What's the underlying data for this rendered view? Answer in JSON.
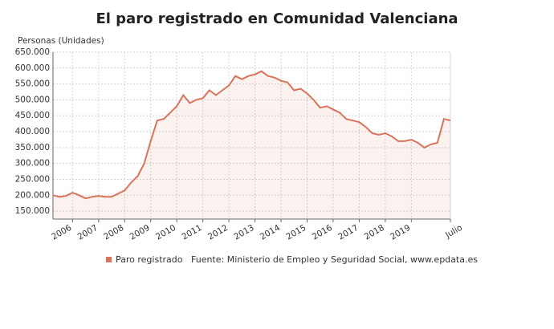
{
  "chart_data": {
    "type": "area",
    "title": "El paro registrado en Comunidad Valenciana",
    "y_label": "Personas (Unidades)",
    "source": "Fuente: Ministerio de Empleo y Seguridad Social, www.epdata.es",
    "categories": [
      null,
      null,
      null,
      "2006",
      null,
      null,
      null,
      "2007",
      null,
      null,
      null,
      "2008",
      null,
      null,
      null,
      "2009",
      null,
      null,
      null,
      "2010",
      null,
      null,
      null,
      "2011",
      null,
      null,
      null,
      "2012",
      null,
      null,
      null,
      "2013",
      null,
      null,
      null,
      "2014",
      null,
      null,
      null,
      "2015",
      null,
      null,
      null,
      "2016",
      null,
      null,
      null,
      "2017",
      null,
      null,
      null,
      "2018",
      null,
      null,
      null,
      "2019",
      null,
      null,
      null,
      null,
      null,
      "Julio"
    ],
    "series": [
      {
        "name": "Paro registrado",
        "color": "#d9745b",
        "values": [
          200000,
          195000,
          198000,
          208000,
          200000,
          190000,
          195000,
          198000,
          195000,
          195000,
          205000,
          215000,
          240000,
          260000,
          300000,
          370000,
          435000,
          440000,
          460000,
          480000,
          515000,
          490000,
          500000,
          505000,
          530000,
          515000,
          530000,
          545000,
          575000,
          565000,
          575000,
          580000,
          590000,
          575000,
          570000,
          560000,
          555000,
          530000,
          535000,
          520000,
          500000,
          475000,
          480000,
          470000,
          460000,
          440000,
          435000,
          430000,
          415000,
          395000,
          390000,
          395000,
          385000,
          370000,
          370000,
          375000,
          365000,
          350000,
          360000,
          365000,
          440000,
          435000
        ]
      }
    ],
    "ylim": [
      125000,
      650000
    ],
    "yticks": [
      {
        "value": 150000,
        "label": "150.000"
      },
      {
        "value": 200000,
        "label": "200.000"
      },
      {
        "value": 250000,
        "label": "250.000"
      },
      {
        "value": 300000,
        "label": "300.000"
      },
      {
        "value": 350000,
        "label": "350.000"
      },
      {
        "value": 400000,
        "label": "400.000"
      },
      {
        "value": 450000,
        "label": "450.000"
      },
      {
        "value": 500000,
        "label": "500.000"
      },
      {
        "value": 550000,
        "label": "550.000"
      },
      {
        "value": 600000,
        "label": "600.000"
      },
      {
        "value": 650000,
        "label": "650.000"
      }
    ],
    "grid": true
  }
}
